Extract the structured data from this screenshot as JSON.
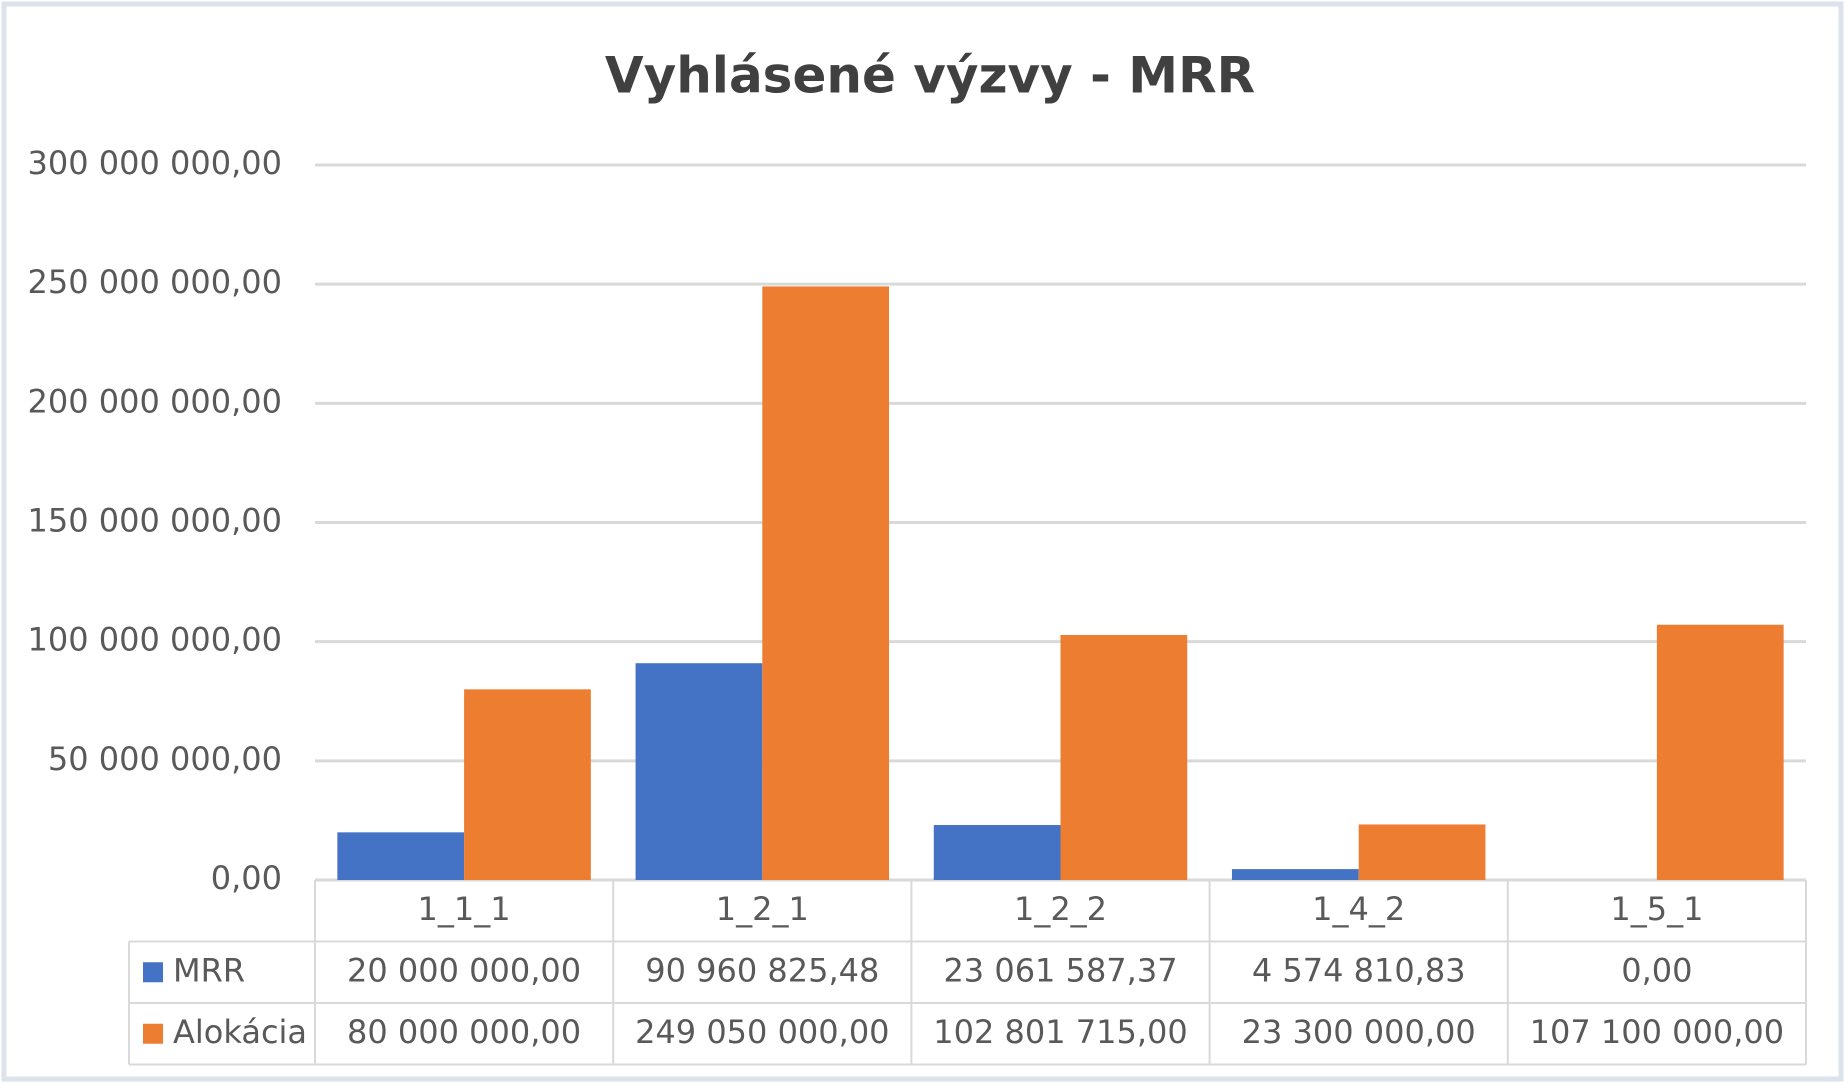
{
  "chart_data": {
    "type": "bar",
    "title": "Vyhlásené výzvy - MRR",
    "categories": [
      "1_1_1",
      "1_2_1",
      "1_2_2",
      "1_4_2",
      "1_5_1"
    ],
    "series": [
      {
        "name": "MRR",
        "color": "#4472c4",
        "values": [
          20000000,
          90960825.48,
          23061587.37,
          4574810.83,
          0
        ],
        "value_labels": [
          "20 000 000,00",
          "90 960 825,48",
          "23 061 587,37",
          "4 574 810,83",
          "0,00"
        ]
      },
      {
        "name": "Alokácia",
        "color": "#ed7d31",
        "values": [
          80000000,
          249050000,
          102801715,
          23300000,
          107100000
        ],
        "value_labels": [
          "80 000 000,00",
          "249 050 000,00",
          "102 801 715,00",
          "23 300 000,00",
          "107 100 000,00"
        ]
      }
    ],
    "ylim": [
      0,
      300000000
    ],
    "yticks": [
      {
        "value": 0,
        "label": "0,00"
      },
      {
        "value": 50000000,
        "label": "50 000 000,00"
      },
      {
        "value": 100000000,
        "label": "100 000 000,00"
      },
      {
        "value": 150000000,
        "label": "150 000 000,00"
      },
      {
        "value": 200000000,
        "label": "200 000 000,00"
      },
      {
        "value": 250000000,
        "label": "250 000 000,00"
      },
      {
        "value": 300000000,
        "label": "300 000 000,00"
      }
    ],
    "grid": true
  }
}
